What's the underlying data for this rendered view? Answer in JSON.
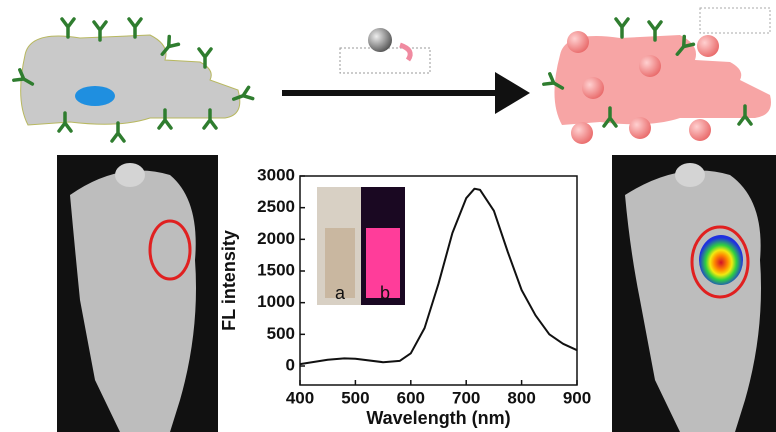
{
  "chart_data": {
    "type": "line",
    "x_label": "Wavelength (nm)",
    "y_label": "FL intensity",
    "x": [
      400,
      450,
      480,
      500,
      550,
      580,
      600,
      625,
      650,
      675,
      700,
      715,
      725,
      750,
      775,
      800,
      825,
      850,
      875,
      900
    ],
    "values": [
      30,
      100,
      120,
      115,
      60,
      80,
      200,
      600,
      1300,
      2100,
      2650,
      2800,
      2780,
      2450,
      1800,
      1200,
      800,
      500,
      350,
      250
    ],
    "color": "#111111",
    "xlim": [
      400,
      900
    ],
    "xticks": [
      400,
      500,
      600,
      700,
      800,
      900
    ],
    "ylim": [
      -300,
      3000
    ],
    "yticks": [
      0,
      500,
      1000,
      1500,
      2000,
      2500,
      3000
    ],
    "annotations": [
      "a",
      "b"
    ]
  }
}
